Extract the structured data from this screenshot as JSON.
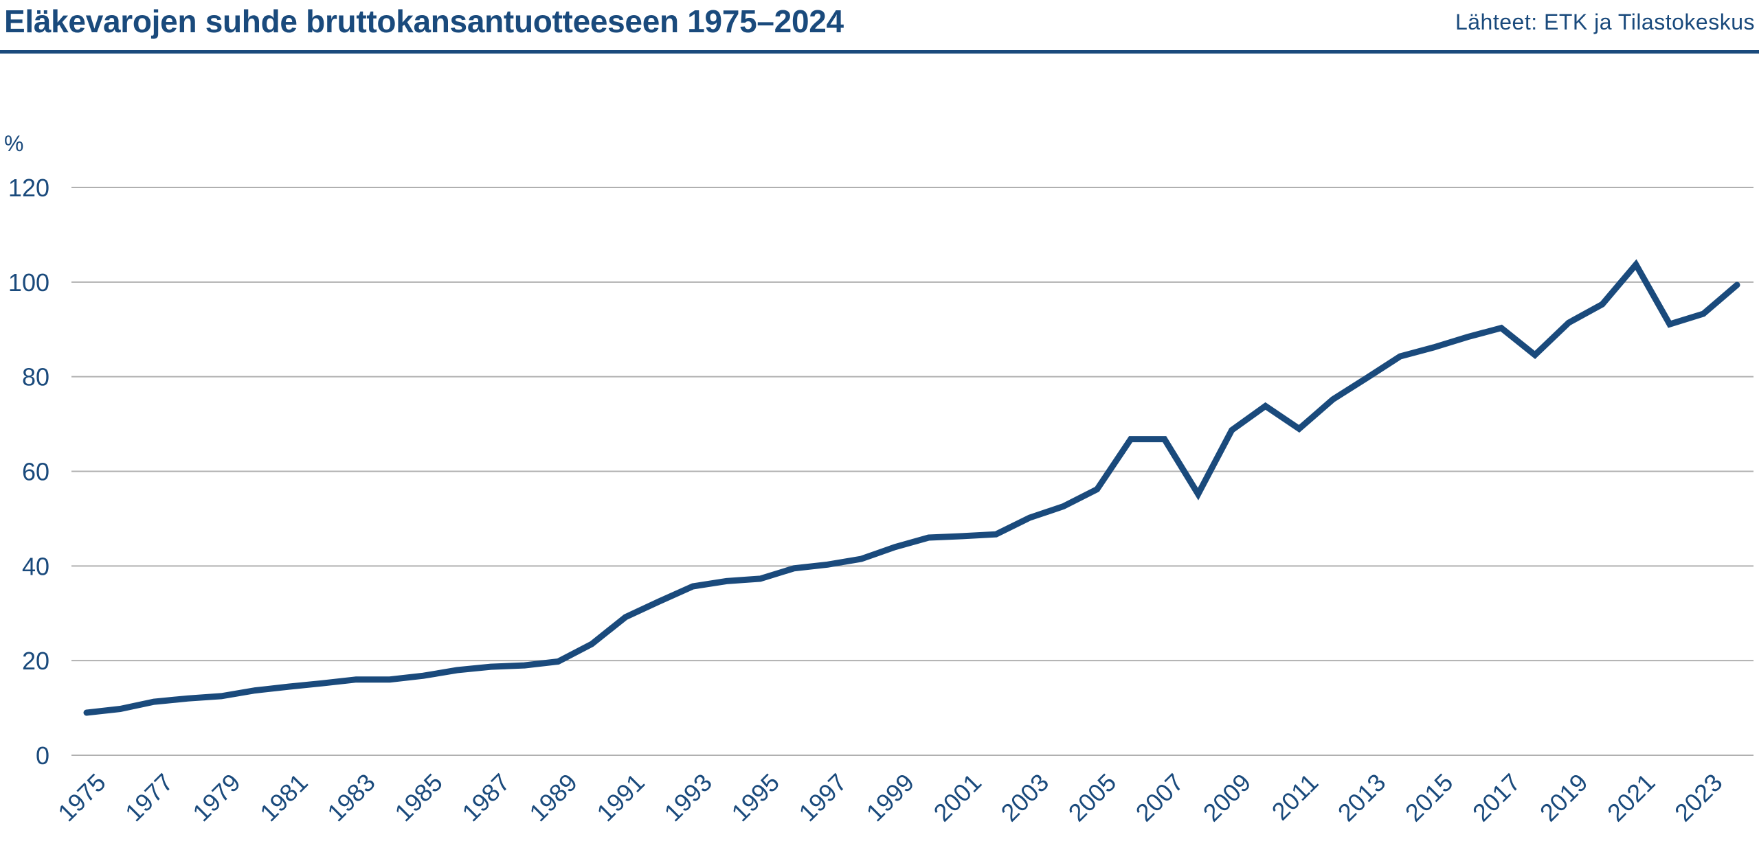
{
  "header": {
    "title": "Eläkevarojen suhde bruttokansantuotteeseen 1975–2024",
    "source": "Lähteet: ETK ja Tilastokeskus"
  },
  "colors": {
    "line": "#1a4a7c",
    "grid": "#b0b0b0",
    "text": "#1a4a7c"
  },
  "chart_data": {
    "type": "line",
    "title": "Eläkevarojen suhde bruttokansantuotteeseen 1975–2024",
    "xlabel": "",
    "ylabel": "%",
    "ylim": [
      0,
      120
    ],
    "yticks": [
      0,
      20,
      40,
      60,
      80,
      100,
      120
    ],
    "xlim": [
      1975,
      2024
    ],
    "xtick_labels": [
      "1975",
      "1977",
      "1979",
      "1981",
      "1983",
      "1985",
      "1987",
      "1989",
      "1991",
      "1993",
      "1995",
      "1997",
      "1999",
      "2001",
      "2003",
      "2005",
      "2007",
      "2009",
      "2011",
      "2013",
      "2015",
      "2017",
      "2019",
      "2021",
      "2023"
    ],
    "grid": "horizontal",
    "legend": "none",
    "series": [
      {
        "x": [
          1975,
          1976,
          1977,
          1978,
          1979,
          1980,
          1981,
          1982,
          1983,
          1984,
          1985,
          1986,
          1987,
          1988,
          1989,
          1990,
          1991,
          1992,
          1993,
          1994,
          1995,
          1996,
          1997,
          1998,
          1999,
          2000,
          2001,
          2002,
          2003,
          2004,
          2005,
          2006,
          2007,
          2008,
          2009,
          2010,
          2011,
          2012,
          2013,
          2014,
          2015,
          2016,
          2017,
          2018,
          2019,
          2020,
          2021,
          2022,
          2023,
          2024
        ],
        "values": [
          9,
          9.8,
          11.3,
          12,
          12.5,
          13.7,
          14.5,
          15.2,
          16,
          16,
          16.8,
          18,
          18.7,
          19,
          19.8,
          23.5,
          29.2,
          32.5,
          35.7,
          36.8,
          37.3,
          39.5,
          40.3,
          41.5,
          44,
          46,
          46.3,
          46.7,
          50.2,
          52.6,
          56.2,
          66.8,
          66.8,
          55.2,
          68.7,
          73.8,
          69,
          75.2,
          79.7,
          84.3,
          86.2,
          88.4,
          90.3,
          84.6,
          91.4,
          95.3,
          103.7,
          91.1,
          93.3,
          99.4
        ]
      }
    ]
  }
}
